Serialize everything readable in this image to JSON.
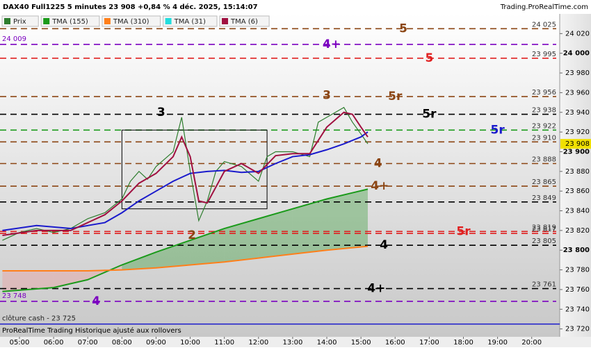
{
  "chart_data": {
    "type": "line",
    "title": "DAX40 Full1225 5 minutes 23 908 +0,84 % 4 déc. 2025, 15:14:07",
    "source": "Trading.ProRealTime.com",
    "footer": "ProRealTime Trading  Historique ajusté aux rollovers",
    "cash_close": {
      "label": "clôture cash -  23 725",
      "value": 23725,
      "color": "#1a1acc"
    },
    "last_price": {
      "label": "23 908",
      "value": 23908
    },
    "xlim": [
      4.43,
      20.82
    ],
    "ylim": [
      23712,
      24040
    ],
    "xticks": [
      {
        "value": 5,
        "label": "05:00"
      },
      {
        "value": 6,
        "label": "06:00"
      },
      {
        "value": 7,
        "label": "07:00"
      },
      {
        "value": 8,
        "label": "08:00"
      },
      {
        "value": 9,
        "label": "09:00"
      },
      {
        "value": 10,
        "label": "10:00"
      },
      {
        "value": 11,
        "label": "11:00"
      },
      {
        "value": 12,
        "label": "12:00"
      },
      {
        "value": 13,
        "label": "13:00"
      },
      {
        "value": 14,
        "label": "14:00"
      },
      {
        "value": 15,
        "label": "15:00"
      },
      {
        "value": 16,
        "label": "16:00"
      },
      {
        "value": 17,
        "label": "17:00"
      },
      {
        "value": 18,
        "label": "18:00"
      },
      {
        "value": 19,
        "label": "19:00"
      },
      {
        "value": 20,
        "label": "20:00"
      }
    ],
    "yticks": [
      {
        "value": 23720,
        "label": "23 720"
      },
      {
        "value": 23740,
        "label": "23 740"
      },
      {
        "value": 23760,
        "label": "23 760"
      },
      {
        "value": 23780,
        "label": "23 780"
      },
      {
        "value": 23800,
        "label": "23 800"
      },
      {
        "value": 23820,
        "label": "23 820"
      },
      {
        "value": 23840,
        "label": "23 840"
      },
      {
        "value": 23860,
        "label": "23 860"
      },
      {
        "value": 23880,
        "label": "23 880"
      },
      {
        "value": 23900,
        "label": "23 900"
      },
      {
        "value": 23920,
        "label": "23 920"
      },
      {
        "value": 23940,
        "label": "23 940"
      },
      {
        "value": 23960,
        "label": "23 960"
      },
      {
        "value": 23980,
        "label": "23 980"
      },
      {
        "value": 24000,
        "label": "24 000"
      },
      {
        "value": 24020,
        "label": "24 020"
      }
    ],
    "series": [
      {
        "name": "Prix",
        "color": "#2e7d2e",
        "x": [
          4.5,
          5.0,
          5.5,
          6.0,
          6.5,
          7.0,
          7.5,
          8.0,
          8.25,
          8.5,
          8.75,
          9.0,
          9.5,
          9.75,
          10.0,
          10.25,
          10.5,
          10.75,
          11.0,
          11.5,
          12.0,
          12.25,
          12.5,
          13.0,
          13.5,
          13.75,
          14.0,
          14.5,
          14.75,
          15.0,
          15.2
        ],
        "values": [
          23810,
          23818,
          23822,
          23818,
          23822,
          23832,
          23838,
          23852,
          23870,
          23880,
          23872,
          23885,
          23900,
          23935,
          23880,
          23830,
          23850,
          23880,
          23890,
          23885,
          23870,
          23895,
          23900,
          23900,
          23895,
          23930,
          23935,
          23945,
          23930,
          23918,
          23908
        ]
      },
      {
        "name": "TMA (155)",
        "color": "#1a9a1a",
        "x": [
          4.5,
          6.0,
          7.0,
          8.0,
          9.0,
          10.0,
          11.0,
          12.0,
          13.0,
          14.0,
          15.2
        ],
        "values": [
          23758,
          23762,
          23770,
          23785,
          23798,
          23810,
          23822,
          23832,
          23842,
          23852,
          23862
        ]
      },
      {
        "name": "TMA (310)",
        "color": "#ff7f1a",
        "x": [
          4.5,
          6.0,
          7.0,
          8.0,
          9.0,
          10.0,
          11.0,
          12.0,
          13.0,
          14.0,
          15.2
        ],
        "values": [
          23779,
          23779,
          23779,
          23780,
          23782,
          23785,
          23788,
          23792,
          23796,
          23800,
          23804
        ]
      },
      {
        "name": "TMA (31)",
        "color": "#1a1acc",
        "legend_color": "#22dddd",
        "x": [
          4.5,
          5.5,
          6.5,
          7.5,
          8.0,
          8.5,
          9.0,
          9.5,
          10.0,
          10.5,
          11.0,
          11.5,
          12.0,
          12.5,
          13.0,
          13.5,
          14.0,
          14.5,
          15.0,
          15.2
        ],
        "values": [
          23820,
          23825,
          23822,
          23828,
          23838,
          23850,
          23860,
          23870,
          23878,
          23880,
          23881,
          23879,
          23880,
          23888,
          23895,
          23897,
          23902,
          23908,
          23915,
          23920
        ]
      },
      {
        "name": "TMA (6)",
        "color": "#a01040",
        "x": [
          4.5,
          5.5,
          6.5,
          7.0,
          7.5,
          8.0,
          8.5,
          9.0,
          9.5,
          9.75,
          10.0,
          10.25,
          10.5,
          11.0,
          11.5,
          12.0,
          12.5,
          13.0,
          13.5,
          14.0,
          14.5,
          14.75,
          15.0,
          15.2
        ],
        "values": [
          23815,
          23820,
          23820,
          23828,
          23836,
          23850,
          23868,
          23878,
          23895,
          23915,
          23895,
          23850,
          23848,
          23880,
          23888,
          23878,
          23896,
          23898,
          23898,
          23925,
          23940,
          23938,
          23925,
          23915
        ]
      }
    ],
    "box": {
      "x": [
        8.0,
        12.25
      ],
      "y": [
        23842,
        23922
      ]
    },
    "annotations": [
      {
        "text": "3",
        "x": 9.15,
        "y": 23940
      },
      {
        "text": "2",
        "x": 10.05,
        "y": 23815
      },
      {
        "text": "3",
        "x": 14.0,
        "y": 23957
      }
    ],
    "levels": [
      {
        "value": 24025,
        "label": "24 025",
        "color": "#8b4513",
        "tag": "5",
        "tag_x": 16.24
      },
      {
        "value": 24009,
        "label": "24 009",
        "color": "#7b00c0",
        "tag": "4+",
        "tag_x": 14.14,
        "side": "left"
      },
      {
        "value": 23995,
        "label": "23 995",
        "color": "#e02020",
        "tag": "5",
        "tag_x": 17.0
      },
      {
        "value": 23956,
        "label": "23 956",
        "color": "#8b4513",
        "tag": "5r",
        "tag_x": 16.0
      },
      {
        "value": 23938,
        "label": "23 938",
        "color": "#000000",
        "tag": "5r",
        "tag_x": 17.0
      },
      {
        "value": 23922,
        "label": "23 922",
        "color": "#1a9a1a",
        "tag": "5r",
        "tag_color": "#1a1acc",
        "tag_x": 19.0
      },
      {
        "value": 23910,
        "label": "23 910",
        "color": "#8b4513"
      },
      {
        "value": 23888,
        "label": "23 888",
        "color": "#8b4513",
        "tag": "4",
        "tag_x": 15.5
      },
      {
        "value": 23865,
        "label": "23 865",
        "color": "#8b4513",
        "tag": "4+",
        "tag_x": 15.55
      },
      {
        "value": 23849,
        "label": "23 849",
        "color": "#000000"
      },
      {
        "value": 23819,
        "label": "23 819",
        "color": "#e02020",
        "tag": "5r",
        "tag_x": 18.0
      },
      {
        "value": 23817,
        "label": "23 817",
        "color": "#e02020"
      },
      {
        "value": 23805,
        "label": "23 805",
        "color": "#000000",
        "tag": "4",
        "tag_x": 15.67
      },
      {
        "value": 23761,
        "label": "23 761",
        "color": "#000000",
        "tag": "4+",
        "tag_x": 15.45
      },
      {
        "value": 23748,
        "label": "23 748",
        "color": "#7b00c0",
        "tag": "4",
        "tag_x": 7.24,
        "side": "left"
      }
    ]
  }
}
